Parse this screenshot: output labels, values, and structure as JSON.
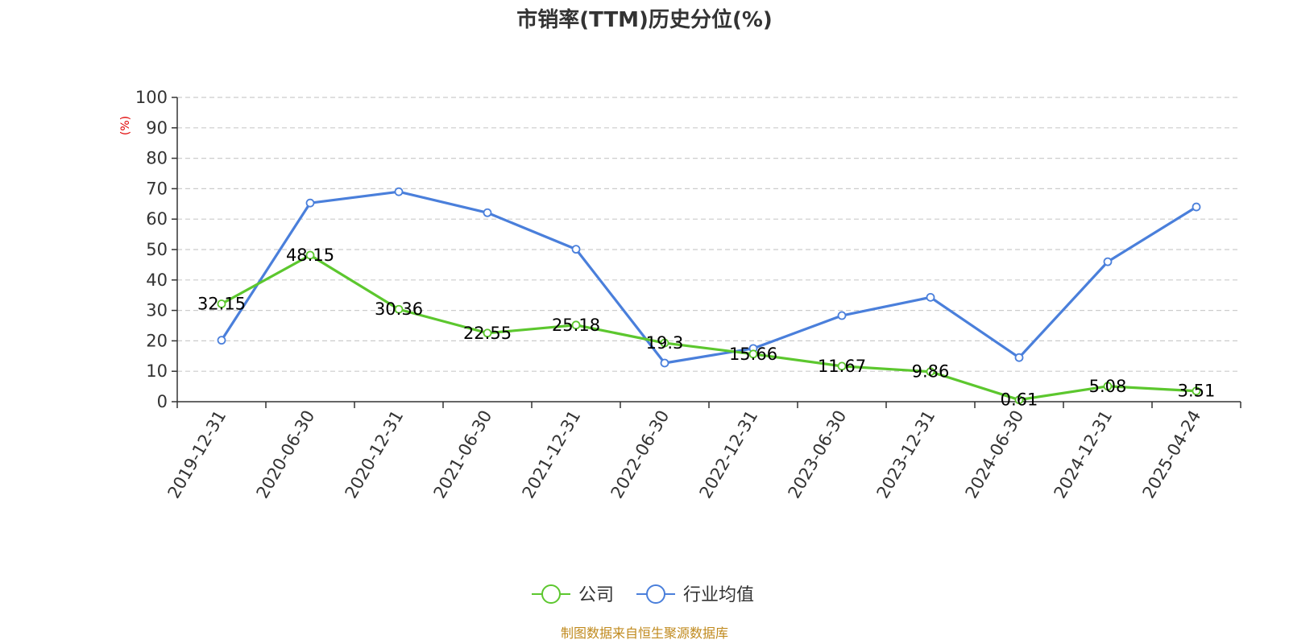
{
  "chart_data": {
    "type": "line",
    "title": "市销率(TTM)历史分位(%)",
    "ylabel": "(%)",
    "ylim": [
      0,
      100
    ],
    "yticks": [
      0,
      10,
      20,
      30,
      40,
      50,
      60,
      70,
      80,
      90,
      100
    ],
    "grid": true,
    "legend_position": "bottom",
    "categories": [
      "2019-12-31",
      "2020-06-30",
      "2020-12-31",
      "2021-06-30",
      "2021-12-31",
      "2022-06-30",
      "2022-12-31",
      "2023-06-30",
      "2023-12-31",
      "2024-06-30",
      "2024-12-31",
      "2025-04-24"
    ],
    "series": [
      {
        "name": "公司",
        "color": "#5cc72e",
        "show_labels": true,
        "values": [
          32.15,
          48.15,
          30.36,
          22.55,
          25.18,
          19.3,
          15.66,
          11.67,
          9.86,
          0.61,
          5.08,
          3.51
        ],
        "labels": [
          "32.15",
          "48.15",
          "30.36",
          "22.55",
          "25.18",
          "19.3",
          "15.66",
          "11.67",
          "9.86",
          "0.61",
          "5.08",
          "3.51"
        ]
      },
      {
        "name": "行业均值",
        "color": "#4a7fdb",
        "show_labels": false,
        "values": [
          20.2,
          65.3,
          69.0,
          62.1,
          50.1,
          12.7,
          17.5,
          28.3,
          34.3,
          14.5,
          46.0,
          64.0
        ]
      }
    ],
    "source": "制图数据来自恒生聚源数据库"
  }
}
